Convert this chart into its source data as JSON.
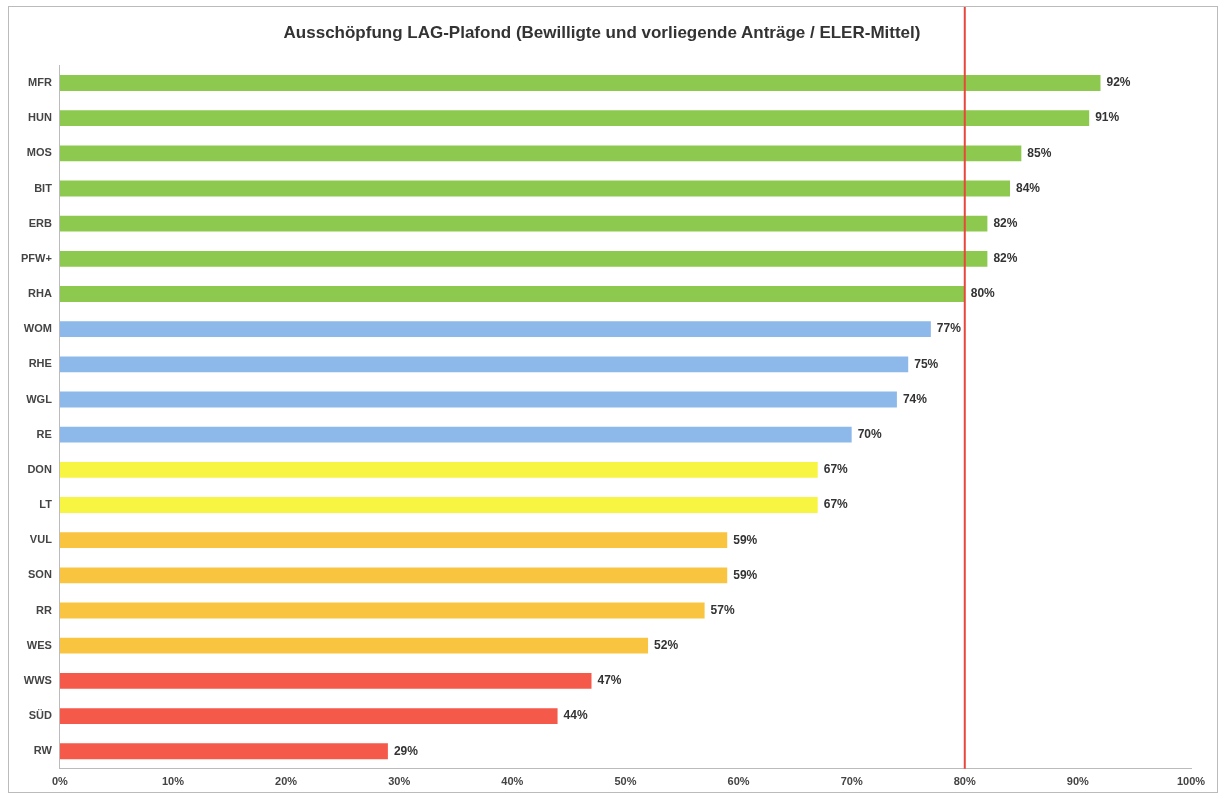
{
  "chart_data": {
    "type": "bar",
    "orientation": "horizontal",
    "title": "Ausschöpfung LAG-Plafond (Bewilligte und vorliegende Anträge / ELER-Mittel)",
    "categories": [
      "MFR",
      "HUN",
      "MOS",
      "BIT",
      "ERB",
      "PFW+",
      "RHA",
      "WOM",
      "RHE",
      "WGL",
      "RE",
      "DON",
      "LT",
      "VUL",
      "SON",
      "RR",
      "WES",
      "WWS",
      "SÜD",
      "RW"
    ],
    "values": [
      92,
      91,
      85,
      84,
      82,
      82,
      80,
      77,
      75,
      74,
      70,
      67,
      67,
      59,
      59,
      57,
      52,
      47,
      44,
      29
    ],
    "value_labels": [
      "92%",
      "91%",
      "85%",
      "84%",
      "82%",
      "82%",
      "80%",
      "77%",
      "75%",
      "74%",
      "70%",
      "67%",
      "67%",
      "59%",
      "59%",
      "57%",
      "52%",
      "47%",
      "44%",
      "29%"
    ],
    "colors": [
      "#8dc94e",
      "#8dc94e",
      "#8dc94e",
      "#8dc94e",
      "#8dc94e",
      "#8dc94e",
      "#8dc94e",
      "#8db8ea",
      "#8db8ea",
      "#8db8ea",
      "#8db8ea",
      "#f8f542",
      "#f8f542",
      "#f9c540",
      "#f9c540",
      "#f9c540",
      "#f9c540",
      "#f5594a",
      "#f5594a",
      "#f5594a"
    ],
    "xlim": [
      0,
      100
    ],
    "xticks": [
      {
        "value": 0,
        "label": "0%"
      },
      {
        "value": 10,
        "label": "10%"
      },
      {
        "value": 20,
        "label": "20%"
      },
      {
        "value": 30,
        "label": "30%"
      },
      {
        "value": 40,
        "label": "40%"
      },
      {
        "value": 50,
        "label": "50%"
      },
      {
        "value": 60,
        "label": "60%"
      },
      {
        "value": 70,
        "label": "70%"
      },
      {
        "value": 80,
        "label": "80%"
      },
      {
        "value": 90,
        "label": "90%"
      },
      {
        "value": 100,
        "label": "100%"
      }
    ],
    "ref_lines": [
      {
        "axis": "x",
        "value": 80,
        "color": "#e8453c"
      }
    ],
    "grid": false,
    "legend": false
  }
}
